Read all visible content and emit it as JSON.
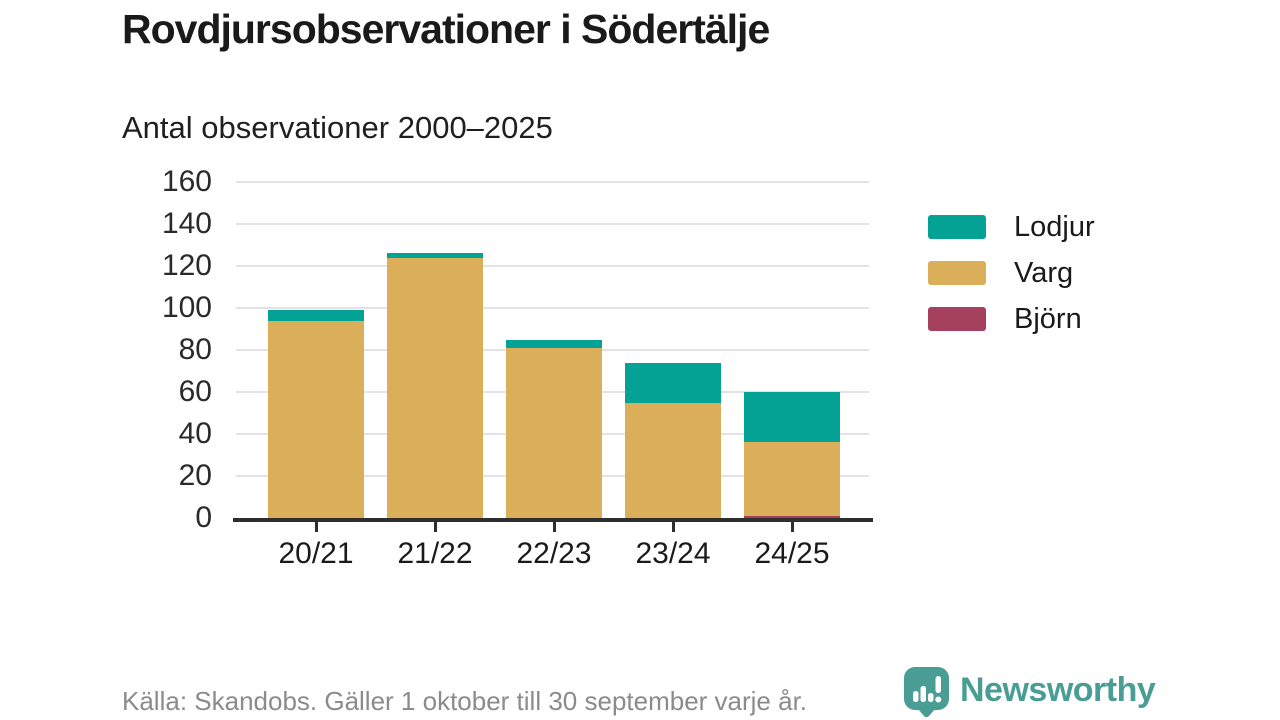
{
  "chart_data": {
    "type": "bar",
    "stacked": true,
    "title": "Rovdjursobservationer i Södertälje",
    "subtitle": "Antal observationer 2000–2025",
    "categories": [
      "20/21",
      "21/22",
      "22/23",
      "23/24",
      "24/25"
    ],
    "series": [
      {
        "name": "Lodjur",
        "color": "#04a195",
        "values": [
          5,
          2,
          4,
          19,
          24
        ]
      },
      {
        "name": "Varg",
        "color": "#dbae59",
        "values": [
          94,
          124,
          81,
          55,
          35
        ]
      },
      {
        "name": "Björn",
        "color": "#a5415f",
        "values": [
          0,
          0,
          0,
          0,
          1
        ]
      }
    ],
    "ylim": [
      0,
      160
    ],
    "yticks": [
      0,
      20,
      40,
      60,
      80,
      100,
      120,
      140,
      160
    ],
    "grid": "horizontal",
    "legend_position": "right"
  },
  "footer": {
    "source": "Källa: Skandobs. Gäller 1 oktober till 30 september varje år.",
    "logo_text": "Newsworthy"
  },
  "colors": {
    "lodjur": "#04a195",
    "varg": "#dbae59",
    "bjorn": "#a5415f",
    "logo_teal": "#4a9d94",
    "axis": "#2e2e2e",
    "gridline": "#e3e3e3",
    "text": "#1a1a1a",
    "muted_text": "#8b8b8b"
  }
}
